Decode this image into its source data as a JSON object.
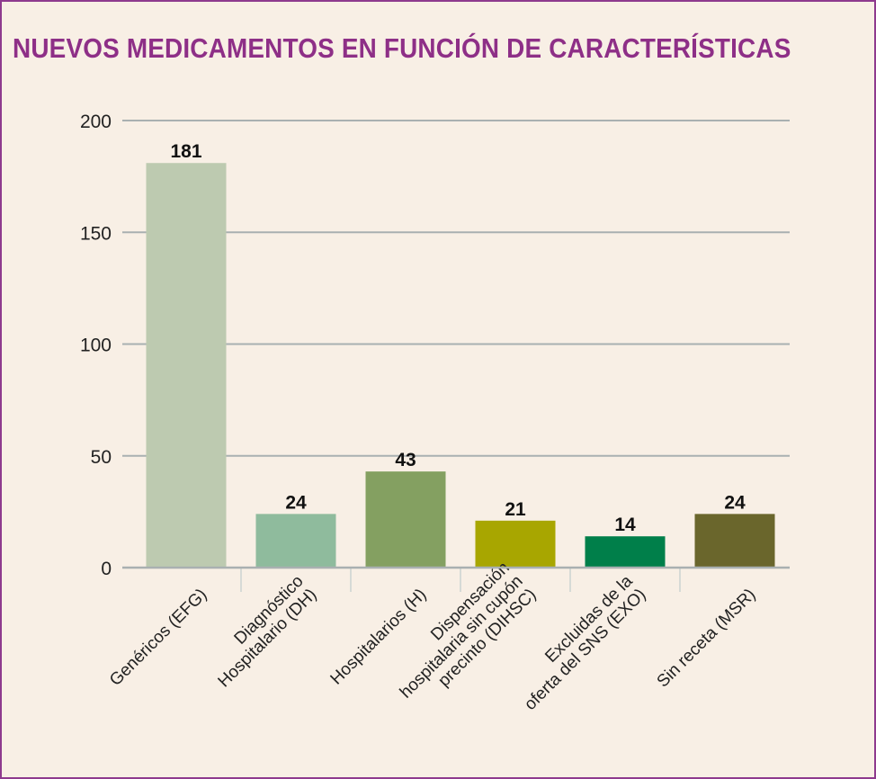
{
  "chart_data": {
    "type": "bar",
    "title": "NUEVOS MEDICAMENTOS EN FUNCIÓN DE CARACTERÍSTICAS",
    "categories": [
      [
        "Genéricos (EFG)"
      ],
      [
        "Diagnóstico",
        "Hospitalario (DH)"
      ],
      [
        "Hospitalarios (H)"
      ],
      [
        "Dispensación",
        "hospitalaria sin cupón",
        "precinto (DIHSC)"
      ],
      [
        "Excluidas de la",
        "oferta del SNS (EXO)"
      ],
      [
        "Sin receta (MSR)"
      ]
    ],
    "values": [
      181,
      24,
      43,
      21,
      14,
      24
    ],
    "colors": [
      "#bdcab0",
      "#8fbb9d",
      "#84a061",
      "#a8a600",
      "#007f4a",
      "#6a662c"
    ],
    "yticks": [
      0,
      50,
      100,
      150,
      200
    ],
    "ylim": [
      0,
      200
    ],
    "xlabel": "",
    "ylabel": "",
    "grid": true
  }
}
